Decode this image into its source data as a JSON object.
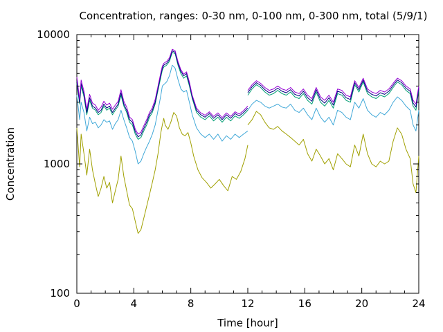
{
  "chart_data": {
    "type": "line",
    "title": "Concentration, ranges: 0-30 nm, 0-100 nm, 0-300 nm, total (5/9/1)",
    "xlabel": "Time [hour]",
    "ylabel": "Concentration",
    "xlim": [
      0,
      24
    ],
    "ylim": [
      100,
      10000
    ],
    "yscale": "log",
    "grid": false,
    "legend": "none",
    "xticks": [
      0,
      4,
      8,
      12,
      16,
      20,
      24
    ],
    "yticks": [
      100,
      1000,
      10000
    ],
    "xtick_labels": [
      "0",
      "4",
      "8",
      "12",
      "16",
      "20",
      "24"
    ],
    "ytick_labels": [
      "100",
      "1000",
      "10000"
    ],
    "series": [
      {
        "color": "#a0a000",
        "x": [
          0,
          0.2,
          0.3,
          0.5,
          0.7,
          0.9,
          1.1,
          1.3,
          1.5,
          1.7,
          1.9,
          2.1,
          2.3,
          2.5,
          2.7,
          2.9,
          3.1,
          3.3,
          3.5,
          3.7,
          3.9,
          4.1,
          4.3,
          4.5,
          4.7,
          4.9,
          5.1,
          5.3,
          5.5,
          5.7,
          5.9,
          6.0,
          6.1,
          6.2,
          6.4,
          6.6,
          6.8,
          7.0,
          7.2,
          7.4,
          7.6,
          7.8,
          8.0,
          8.2,
          8.5,
          8.8,
          9.1,
          9.4,
          9.7,
          10.0,
          10.3,
          10.6,
          10.9,
          11.2,
          11.5,
          11.8,
          12.0
        ],
        "y": [
          1900,
          950,
          1700,
          1200,
          820,
          1300,
          900,
          700,
          560,
          650,
          800,
          650,
          720,
          500,
          620,
          760,
          1150,
          800,
          620,
          480,
          450,
          360,
          290,
          310,
          380,
          470,
          580,
          720,
          900,
          1200,
          1750,
          2000,
          2250,
          2000,
          1850,
          2100,
          2500,
          2350,
          1900,
          1700,
          1650,
          1750,
          1450,
          1150,
          900,
          780,
          720,
          650,
          700,
          760,
          680,
          620,
          800,
          760,
          870,
          1100,
          1400
        ]
      },
      {
        "color": "#a0a000",
        "x": [
          12.0,
          12.3,
          12.6,
          12.9,
          13.2,
          13.5,
          13.8,
          14.1,
          14.4,
          14.7,
          15.0,
          15.3,
          15.6,
          15.9,
          16.2,
          16.5,
          16.8,
          17.1,
          17.4,
          17.7,
          18.0,
          18.3,
          18.6,
          18.9,
          19.2,
          19.5,
          19.8,
          20.1,
          20.4,
          20.7,
          21.0,
          21.3,
          21.6,
          21.9,
          22.2,
          22.5,
          22.8,
          23.1,
          23.4,
          23.6,
          23.8,
          24.0
        ],
        "y": [
          2000,
          2200,
          2550,
          2400,
          2100,
          1900,
          1850,
          1950,
          1800,
          1700,
          1600,
          1500,
          1400,
          1550,
          1200,
          1050,
          1300,
          1150,
          1000,
          1100,
          900,
          1200,
          1100,
          1000,
          950,
          1400,
          1150,
          1700,
          1200,
          1000,
          950,
          1050,
          1000,
          1050,
          1500,
          1900,
          1700,
          1300,
          1100,
          700,
          600,
          1150
        ]
      },
      {
        "color": "#40a8d8",
        "x": [
          0,
          0.2,
          0.3,
          0.5,
          0.7,
          0.9,
          1.1,
          1.3,
          1.5,
          1.7,
          1.9,
          2.1,
          2.3,
          2.5,
          2.7,
          2.9,
          3.1,
          3.3,
          3.5,
          3.7,
          3.9,
          4.1,
          4.3,
          4.5,
          4.7,
          4.9,
          5.1,
          5.3,
          5.5,
          5.7,
          5.9,
          6.0,
          6.1,
          6.3,
          6.5,
          6.7,
          6.9,
          7.1,
          7.3,
          7.5,
          7.7,
          7.9,
          8.1,
          8.4,
          8.7,
          9.0,
          9.3,
          9.6,
          9.9,
          10.2,
          10.5,
          10.8,
          11.1,
          11.4,
          11.7,
          12.0
        ],
        "y": [
          3400,
          2200,
          3000,
          2500,
          1800,
          2300,
          2050,
          2100,
          1900,
          2000,
          2200,
          2100,
          2150,
          1850,
          2050,
          2200,
          2600,
          2200,
          1900,
          1600,
          1500,
          1250,
          1000,
          1050,
          1200,
          1350,
          1500,
          1700,
          2000,
          2600,
          3400,
          4000,
          4100,
          4300,
          4800,
          5800,
          5500,
          4500,
          3800,
          3600,
          3700,
          3000,
          2400,
          1900,
          1700,
          1600,
          1700,
          1550,
          1700,
          1500,
          1650,
          1550,
          1700,
          1600,
          1700,
          1800
        ]
      },
      {
        "color": "#40a8d8",
        "x": [
          12.0,
          12.3,
          12.6,
          12.9,
          13.2,
          13.5,
          13.8,
          14.1,
          14.4,
          14.7,
          15.0,
          15.3,
          15.6,
          15.9,
          16.2,
          16.5,
          16.8,
          17.1,
          17.4,
          17.7,
          18.0,
          18.3,
          18.6,
          18.9,
          19.2,
          19.5,
          19.8,
          20.1,
          20.4,
          20.7,
          21.0,
          21.3,
          21.6,
          21.9,
          22.2,
          22.5,
          22.8,
          23.1,
          23.4,
          23.6,
          23.8,
          24.0
        ],
        "y": [
          2600,
          2900,
          3100,
          3000,
          2800,
          2700,
          2800,
          2900,
          2750,
          2700,
          2900,
          2600,
          2500,
          2700,
          2400,
          2200,
          2700,
          2300,
          2100,
          2300,
          2000,
          2600,
          2500,
          2300,
          2200,
          3000,
          2700,
          3200,
          2600,
          2400,
          2300,
          2500,
          2400,
          2600,
          3000,
          3300,
          3100,
          2800,
          2600,
          2000,
          1800,
          2600
        ]
      },
      {
        "color": "#009e73",
        "x": [
          0,
          0.2,
          0.3,
          0.5,
          0.7,
          0.9,
          1.1,
          1.3,
          1.5,
          1.7,
          1.9,
          2.1,
          2.3,
          2.5,
          2.7,
          2.9,
          3.1,
          3.3,
          3.5,
          3.7,
          3.9,
          4.1,
          4.3,
          4.5,
          4.7,
          4.9,
          5.1,
          5.3,
          5.5,
          5.7,
          5.9,
          6.0,
          6.1,
          6.3,
          6.5,
          6.7,
          6.9,
          7.1,
          7.3,
          7.5,
          7.7,
          7.9,
          8.1,
          8.4,
          8.7,
          9.0,
          9.3,
          9.6,
          9.9,
          10.2,
          10.5,
          10.8,
          11.1,
          11.4,
          11.7,
          12.0
        ],
        "y": [
          4200,
          2900,
          4000,
          3300,
          2400,
          3100,
          2700,
          2600,
          2400,
          2500,
          2800,
          2600,
          2700,
          2400,
          2600,
          2800,
          3400,
          2800,
          2500,
          2100,
          2000,
          1700,
          1550,
          1600,
          1800,
          2000,
          2300,
          2500,
          2900,
          3700,
          4700,
          5300,
          5600,
          5800,
          6200,
          7300,
          7100,
          5800,
          5000,
          4600,
          4800,
          4000,
          3200,
          2500,
          2300,
          2200,
          2350,
          2150,
          2300,
          2100,
          2300,
          2150,
          2350,
          2250,
          2400,
          2600
        ]
      },
      {
        "color": "#009e73",
        "x": [
          12.0,
          12.3,
          12.6,
          12.9,
          13.2,
          13.5,
          13.8,
          14.1,
          14.4,
          14.7,
          15.0,
          15.3,
          15.6,
          15.9,
          16.2,
          16.5,
          16.8,
          17.1,
          17.4,
          17.7,
          18.0,
          18.3,
          18.6,
          18.9,
          19.2,
          19.5,
          19.8,
          20.1,
          20.4,
          20.7,
          21.0,
          21.3,
          21.6,
          21.9,
          22.2,
          22.5,
          22.8,
          23.1,
          23.4,
          23.6,
          23.8,
          24.0
        ],
        "y": [
          3400,
          3800,
          4100,
          3900,
          3600,
          3400,
          3500,
          3700,
          3500,
          3400,
          3600,
          3300,
          3200,
          3500,
          3100,
          2900,
          3600,
          3000,
          2800,
          3100,
          2700,
          3500,
          3400,
          3100,
          3000,
          4100,
          3600,
          4300,
          3500,
          3300,
          3200,
          3400,
          3300,
          3500,
          3900,
          4300,
          4100,
          3700,
          3500,
          2800,
          2600,
          3700
        ]
      },
      {
        "color": "#000080",
        "x": [
          0,
          0.2,
          0.3,
          0.5,
          0.7,
          0.9,
          1.1,
          1.3,
          1.5,
          1.7,
          1.9,
          2.1,
          2.3,
          2.5,
          2.7,
          2.9,
          3.1,
          3.3,
          3.5,
          3.7,
          3.9,
          4.1,
          4.3,
          4.5,
          4.7,
          4.9,
          5.1,
          5.3,
          5.5,
          5.7,
          5.9,
          6.0,
          6.1,
          6.3,
          6.5,
          6.7,
          6.9,
          7.1,
          7.3,
          7.5,
          7.7,
          7.9,
          8.1,
          8.4,
          8.7,
          9.0,
          9.3,
          9.6,
          9.9,
          10.2,
          10.5,
          10.8,
          11.1,
          11.4,
          11.7,
          12.0
        ],
        "y": [
          4400,
          3000,
          4200,
          3450,
          2500,
          3250,
          2800,
          2700,
          2500,
          2600,
          2900,
          2700,
          2800,
          2500,
          2700,
          2900,
          3550,
          2900,
          2600,
          2200,
          2100,
          1780,
          1620,
          1680,
          1880,
          2100,
          2400,
          2600,
          3000,
          3850,
          4900,
          5500,
          5800,
          6000,
          6400,
          7500,
          7300,
          6000,
          5200,
          4800,
          5000,
          4150,
          3300,
          2600,
          2400,
          2300,
          2450,
          2250,
          2400,
          2200,
          2400,
          2250,
          2450,
          2350,
          2500,
          2700
        ]
      },
      {
        "color": "#000080",
        "x": [
          12.0,
          12.3,
          12.6,
          12.9,
          13.2,
          13.5,
          13.8,
          14.1,
          14.4,
          14.7,
          15.0,
          15.3,
          15.6,
          15.9,
          16.2,
          16.5,
          16.8,
          17.1,
          17.4,
          17.7,
          18.0,
          18.3,
          18.6,
          18.9,
          19.2,
          19.5,
          19.8,
          20.1,
          20.4,
          20.7,
          21.0,
          21.3,
          21.6,
          21.9,
          22.2,
          22.5,
          22.8,
          23.1,
          23.4,
          23.6,
          23.8,
          24.0
        ],
        "y": [
          3550,
          3950,
          4250,
          4050,
          3750,
          3550,
          3650,
          3850,
          3650,
          3550,
          3750,
          3450,
          3350,
          3650,
          3250,
          3050,
          3750,
          3150,
          2950,
          3250,
          2850,
          3650,
          3550,
          3250,
          3150,
          4250,
          3750,
          4450,
          3650,
          3450,
          3350,
          3550,
          3450,
          3650,
          4050,
          4450,
          4250,
          3850,
          3650,
          2950,
          2750,
          3850
        ]
      },
      {
        "color": "#9400d3",
        "x": [
          0,
          0.2,
          0.3,
          0.5,
          0.7,
          0.9,
          1.1,
          1.3,
          1.5,
          1.7,
          1.9,
          2.1,
          2.3,
          2.5,
          2.7,
          2.9,
          3.1,
          3.3,
          3.5,
          3.7,
          3.9,
          4.1,
          4.3,
          4.5,
          4.7,
          4.9,
          5.1,
          5.3,
          5.5,
          5.7,
          5.9,
          6.0,
          6.1,
          6.3,
          6.5,
          6.7,
          6.9,
          7.1,
          7.3,
          7.5,
          7.7,
          7.9,
          8.1,
          8.4,
          8.7,
          9.0,
          9.3,
          9.6,
          9.9,
          10.2,
          10.5,
          10.8,
          11.1,
          11.4,
          11.7,
          12.0
        ],
        "y": [
          4700,
          3150,
          4450,
          3650,
          2650,
          3450,
          2950,
          2850,
          2600,
          2750,
          3050,
          2850,
          2950,
          2650,
          2850,
          3050,
          3750,
          3050,
          2750,
          2300,
          2200,
          1860,
          1700,
          1760,
          1970,
          2200,
          2500,
          2720,
          3150,
          4000,
          5100,
          5700,
          6000,
          6200,
          6600,
          7700,
          7500,
          6200,
          5350,
          4950,
          5150,
          4300,
          3400,
          2700,
          2480,
          2380,
          2530,
          2330,
          2480,
          2280,
          2480,
          2330,
          2530,
          2430,
          2580,
          2800
        ]
      },
      {
        "color": "#9400d3",
        "x": [
          12.0,
          12.3,
          12.6,
          12.9,
          13.2,
          13.5,
          13.8,
          14.1,
          14.4,
          14.7,
          15.0,
          15.3,
          15.6,
          15.9,
          16.2,
          16.5,
          16.8,
          17.1,
          17.4,
          17.7,
          18.0,
          18.3,
          18.6,
          18.9,
          19.2,
          19.5,
          19.8,
          20.1,
          20.4,
          20.7,
          21.0,
          21.3,
          21.6,
          21.9,
          22.2,
          22.5,
          22.8,
          23.1,
          23.4,
          23.6,
          23.8,
          24.0
        ],
        "y": [
          3700,
          4100,
          4400,
          4200,
          3900,
          3700,
          3800,
          4000,
          3800,
          3700,
          3900,
          3600,
          3500,
          3800,
          3400,
          3200,
          3900,
          3300,
          3100,
          3400,
          3000,
          3800,
          3700,
          3400,
          3300,
          4400,
          3900,
          4600,
          3800,
          3600,
          3500,
          3700,
          3600,
          3800,
          4200,
          4600,
          4400,
          4000,
          3800,
          3100,
          2900,
          4000
        ]
      }
    ]
  }
}
